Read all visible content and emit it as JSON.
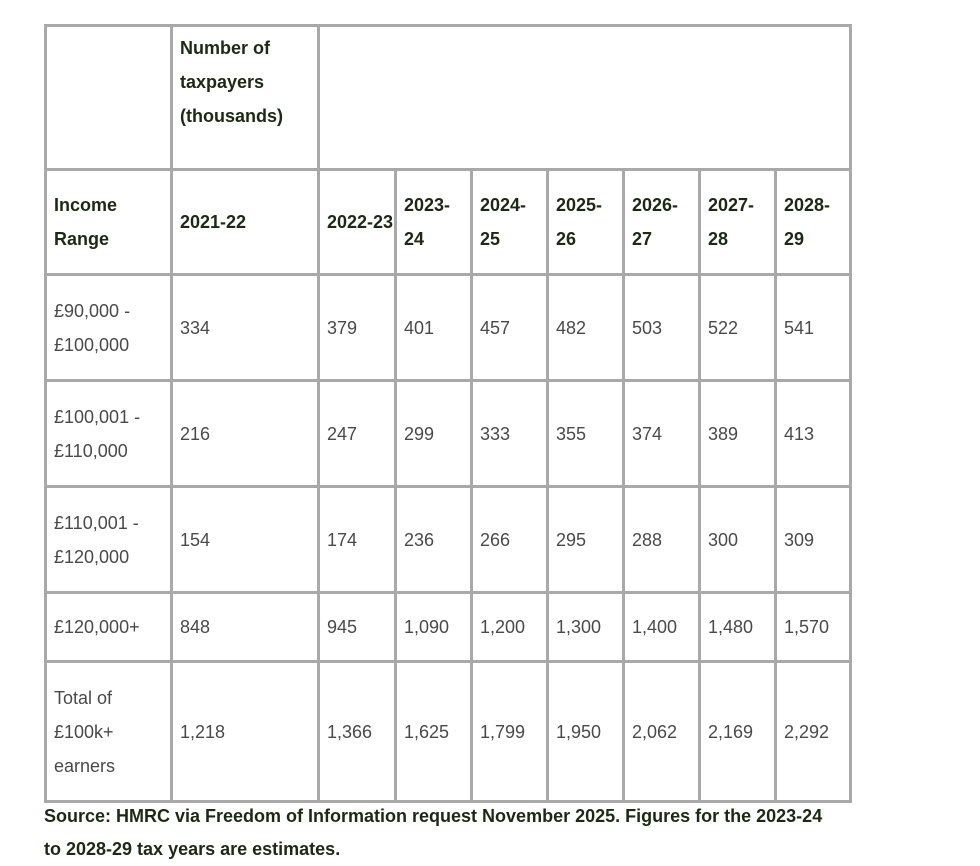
{
  "table": {
    "header_top": "Number of taxpayers (thousands)",
    "row_header_label": "Income Range",
    "years": [
      "2021-22",
      "2022-23",
      "2023-24",
      "2024-25",
      "2025-26",
      "2026-27",
      "2027-28",
      "2028-29"
    ],
    "rows": [
      {
        "range": "£90,000 - £100,000",
        "values": [
          "334",
          "379",
          "401",
          "457",
          "482",
          "503",
          "522",
          "541"
        ]
      },
      {
        "range": "£100,001 - £110,000",
        "values": [
          "216",
          "247",
          "299",
          "333",
          "355",
          "374",
          "389",
          "413"
        ]
      },
      {
        "range": "£110,001 - £120,000",
        "values": [
          "154",
          "174",
          "236",
          "266",
          "295",
          "288",
          "300",
          "309"
        ]
      },
      {
        "range": "£120,000+",
        "values": [
          "848",
          "945",
          "1,090",
          "1,200",
          "1,300",
          "1,400",
          "1,480",
          "1,570"
        ]
      },
      {
        "range": "Total of £100k+ earners",
        "values": [
          "1,218",
          "1,366",
          "1,625",
          "1,799",
          "1,950",
          "2,062",
          "2,169",
          "2,292"
        ]
      }
    ]
  },
  "source": "Source: HMRC via Freedom of Information request November 2025. Figures for the 2023-24 to 2028-29 tax years are estimates."
}
